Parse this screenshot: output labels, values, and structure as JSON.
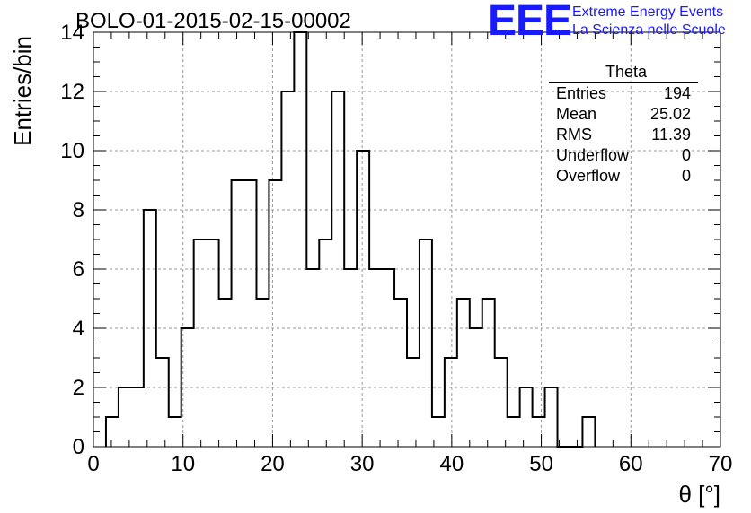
{
  "title": "BOLO-01-2015-02-15-00002",
  "logo": {
    "mark": "EEE",
    "line1": "Extreme Energy Events",
    "line2": "La Scienza nelle Scuole",
    "color": "#1a1aff"
  },
  "stats": {
    "name": "Theta",
    "rows": [
      {
        "label": "Entries",
        "value": "194"
      },
      {
        "label": "Mean",
        "value": "25.02"
      },
      {
        "label": "RMS",
        "value": "11.39"
      },
      {
        "label": "Underflow",
        "value": "0"
      },
      {
        "label": "Overflow",
        "value": "0"
      }
    ]
  },
  "chart_data": {
    "type": "histogram",
    "xlabel": "θ [°]",
    "ylabel": "Entries/bin",
    "xlim": [
      0,
      70
    ],
    "ylim": [
      0,
      14
    ],
    "x_ticks": [
      0,
      10,
      20,
      30,
      40,
      50,
      60,
      70
    ],
    "y_ticks": [
      0,
      2,
      4,
      6,
      8,
      10,
      12,
      14
    ],
    "grid": true,
    "bin_width": 1.4,
    "bin_start": 1.4,
    "counts": [
      1,
      2,
      2,
      8,
      3,
      1,
      4,
      7,
      7,
      5,
      9,
      9,
      5,
      9,
      12,
      14,
      6,
      7,
      12,
      6,
      10,
      6,
      6,
      5,
      3,
      7,
      1,
      3,
      5,
      4,
      5,
      3,
      1,
      2,
      1,
      2,
      0,
      0,
      1
    ]
  }
}
